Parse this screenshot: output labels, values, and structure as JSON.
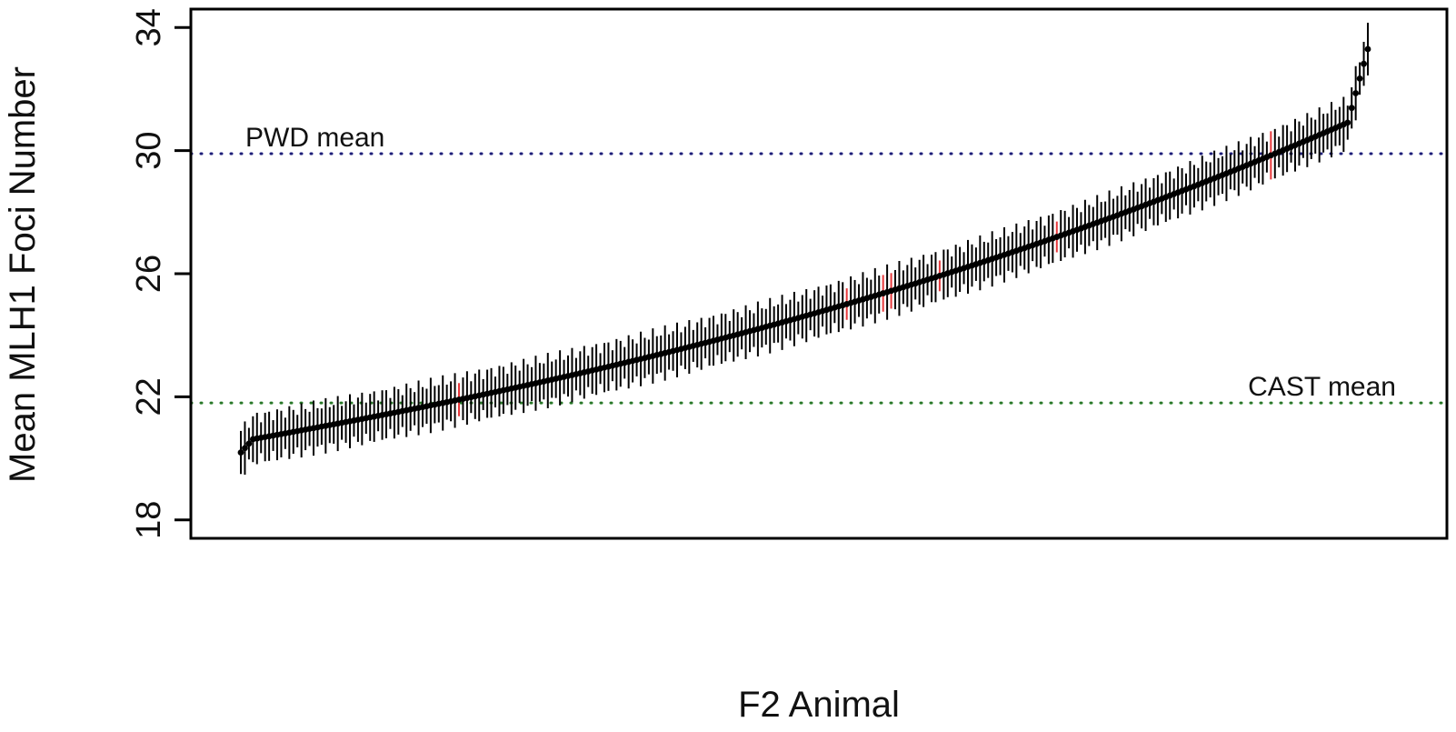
{
  "chart_data": {
    "type": "scatter",
    "xlabel": "F2 Animal",
    "ylabel": "Mean MLH1 Foci Number",
    "ylim": [
      17.4,
      34.6
    ],
    "yticks": [
      18,
      22,
      26,
      30,
      34
    ],
    "x_ticks_shown": false,
    "grid": false,
    "n_animals": 280,
    "mean_range": [
      20.4,
      32.5
    ],
    "error_bar_halfwidth_range": [
      0.5,
      0.9
    ],
    "point_color": "#000000",
    "errorbar_color": "#000000",
    "highlight_color": "#e8393c",
    "highlighted_ranks": [
      54,
      150,
      159,
      161,
      173,
      202,
      255
    ],
    "reference_lines": [
      {
        "label": "PWD mean",
        "value": 29.9,
        "color": "#1f1f7a",
        "label_position": "top-left"
      },
      {
        "label": "CAST mean",
        "value": 21.8,
        "color": "#2a7a2a",
        "label_position": "top-right"
      }
    ]
  }
}
